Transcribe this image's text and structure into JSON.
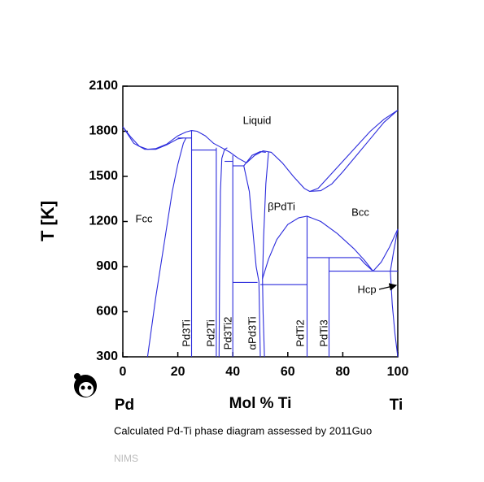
{
  "chart_data": {
    "type": "line",
    "y_label": "T [K]",
    "x_label": "Mol % Ti",
    "left_component": "Pd",
    "right_component": "Ti",
    "caption": "Calculated Pd-Ti phase diagram assessed by 2011Guo",
    "source": "NIMS",
    "color": "#2b2bdc",
    "xlim": [
      0,
      100
    ],
    "xticks": [
      0,
      20,
      40,
      60,
      80,
      100
    ],
    "ylim": [
      300,
      2100
    ],
    "yticks": [
      300,
      600,
      900,
      1200,
      1500,
      1800,
      2100
    ],
    "annotations": [
      "Liquid",
      "Fcc",
      "βPdTi",
      "Bcc",
      "Hcp",
      "Pd3Ti",
      "Pd2Ti",
      "Pd3Ti2",
      "αPd3Ti",
      "PdTi2",
      "PdTi3"
    ],
    "series": [
      {
        "x": [
          0,
          3,
          6,
          9,
          12,
          16,
          20,
          23,
          25,
          27,
          30,
          33,
          36,
          39,
          42,
          45,
          48,
          51,
          54,
          58,
          62,
          66,
          68,
          71,
          75,
          80,
          85,
          90,
          95,
          100
        ],
        "values": [
          1830,
          1760,
          1700,
          1680,
          1685,
          1715,
          1770,
          1795,
          1805,
          1800,
          1770,
          1720,
          1690,
          1660,
          1620,
          1590,
          1640,
          1670,
          1660,
          1590,
          1500,
          1420,
          1400,
          1420,
          1500,
          1600,
          1700,
          1800,
          1880,
          1940
        ]
      },
      {
        "x": [
          0,
          4,
          8,
          12,
          16,
          20,
          22
        ],
        "values": [
          1830,
          1720,
          1680,
          1680,
          1710,
          1750,
          1755
        ]
      },
      {
        "x": [
          9,
          12,
          15,
          18,
          20,
          22,
          23
        ],
        "values": [
          300,
          700,
          1050,
          1400,
          1580,
          1720,
          1755
        ]
      },
      {
        "x": [
          20,
          25
        ],
        "values": [
          1755,
          1755
        ]
      },
      {
        "x": [
          25,
          25
        ],
        "values": [
          300,
          1805
        ]
      },
      {
        "x": [
          25,
          34
        ],
        "values": [
          1675,
          1675
        ]
      },
      {
        "x": [
          34,
          34
        ],
        "values": [
          300,
          1690
        ]
      },
      {
        "x": [
          35,
          35.2,
          35.5,
          36,
          37,
          38
        ],
        "values": [
          300,
          900,
          1400,
          1620,
          1680,
          1690
        ]
      },
      {
        "x": [
          40,
          40
        ],
        "values": [
          300,
          1640
        ]
      },
      {
        "x": [
          37,
          40
        ],
        "values": [
          1600,
          1600
        ]
      },
      {
        "x": [
          40,
          44
        ],
        "values": [
          1570,
          1570
        ]
      },
      {
        "x": [
          44,
          46,
          47.5,
          48.5,
          49.5,
          50
        ],
        "values": [
          1570,
          1400,
          1100,
          900,
          800,
          300
        ]
      },
      {
        "x": [
          40,
          49
        ],
        "values": [
          795,
          795
        ]
      },
      {
        "x": [
          53,
          52,
          51.2,
          50.8,
          51,
          51.5
        ],
        "values": [
          1660,
          1450,
          1100,
          820,
          600,
          300
        ]
      },
      {
        "x": [
          50,
          67
        ],
        "values": [
          780,
          780
        ]
      },
      {
        "x": [
          50.8,
          53,
          56,
          60,
          64,
          67,
          72,
          78,
          84,
          88,
          91
        ],
        "values": [
          820,
          950,
          1080,
          1180,
          1225,
          1235,
          1200,
          1120,
          1020,
          940,
          870
        ]
      },
      {
        "x": [
          67,
          67
        ],
        "values": [
          300,
          1235
        ]
      },
      {
        "x": [
          67,
          86
        ],
        "values": [
          960,
          960
        ]
      },
      {
        "x": [
          75,
          75
        ],
        "values": [
          300,
          960
        ]
      },
      {
        "x": [
          75,
          100
        ],
        "values": [
          870,
          870
        ]
      },
      {
        "x": [
          86,
          88,
          91
        ],
        "values": [
          960,
          920,
          870
        ]
      },
      {
        "x": [
          91,
          94,
          97,
          100
        ],
        "values": [
          870,
          930,
          1030,
          1150
        ]
      },
      {
        "x": [
          100,
          98.5,
          97.3
        ],
        "values": [
          1150,
          1000,
          870
        ]
      },
      {
        "x": [
          97.3,
          98,
          99,
          100
        ],
        "values": [
          870,
          650,
          450,
          300
        ]
      },
      {
        "x": [
          68,
          72,
          76,
          80,
          85,
          90,
          95,
          100
        ],
        "values": [
          1400,
          1405,
          1450,
          1530,
          1640,
          1750,
          1860,
          1940
        ]
      },
      {
        "x": [
          44,
          47,
          50,
          52
        ],
        "values": [
          1570,
          1640,
          1665,
          1660
        ]
      }
    ]
  }
}
